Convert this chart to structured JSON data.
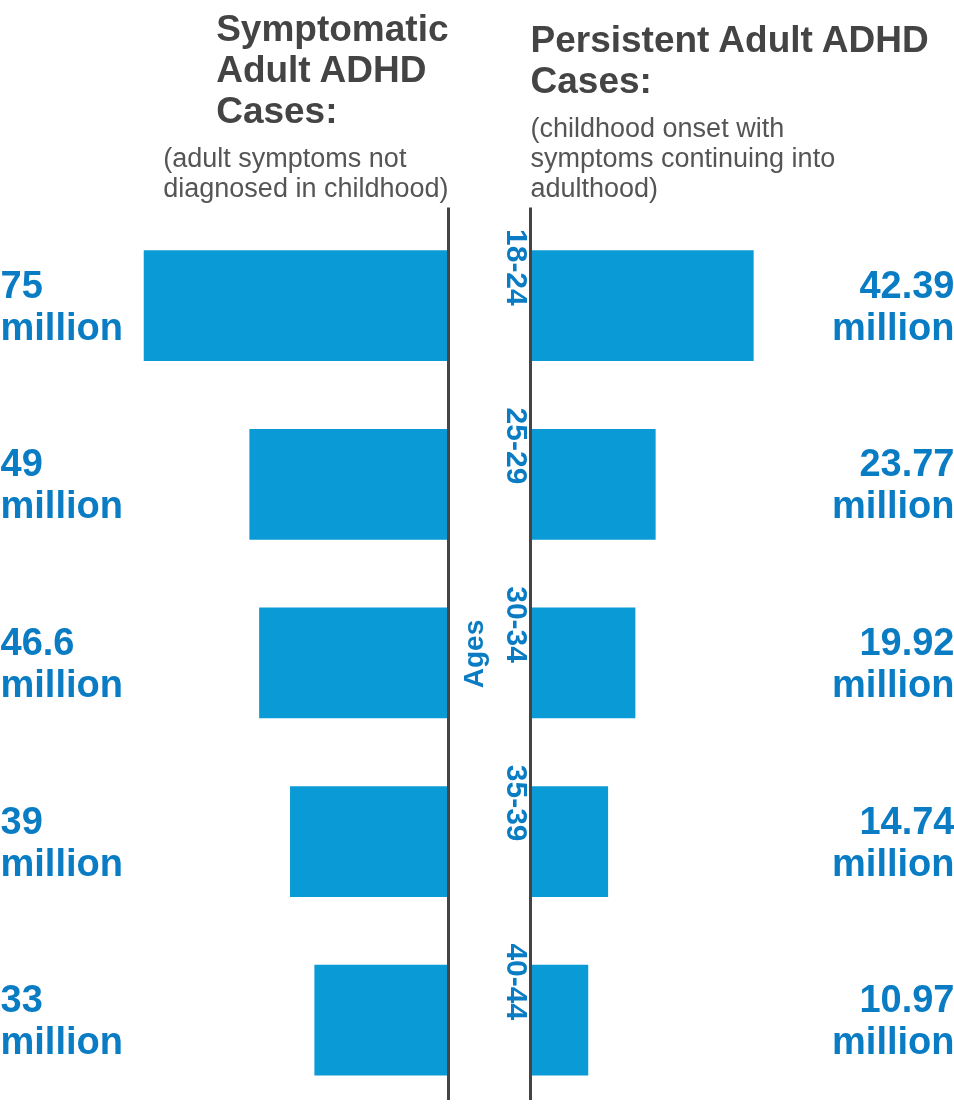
{
  "chart_data": [
    {
      "type": "bar",
      "orientation": "horizontal",
      "title": "Symptomatic Adult ADHD Cases:",
      "subtitle": "(adult symptoms not diagnosed in childhood)",
      "categories": [
        "18-24",
        "25-29",
        "30-34",
        "35-39",
        "40-44"
      ],
      "values": [
        75,
        49,
        46.6,
        39,
        33
      ],
      "value_labels": [
        "75 million",
        "49 million",
        "46.6 million",
        "39 million",
        "33 million"
      ],
      "color": "#0a9ad5",
      "tick_labels": false,
      "grid": false
    },
    {
      "type": "bar",
      "orientation": "horizontal",
      "title": "Persistent Adult ADHD Cases:",
      "subtitle": "(childhood onset with symptoms continuing into adulthood)",
      "ylabel": "Ages",
      "categories": [
        "18-24",
        "25-29",
        "30-34",
        "35-39",
        "40-44"
      ],
      "values": [
        42.39,
        23.77,
        19.92,
        14.74,
        10.97
      ],
      "value_labels": [
        "42.39 million",
        "23.77 million",
        "19.92 million",
        "14.74 million",
        "10.97 million"
      ],
      "color": "#0a9ad5",
      "tick_labels": "y",
      "grid": false
    }
  ]
}
